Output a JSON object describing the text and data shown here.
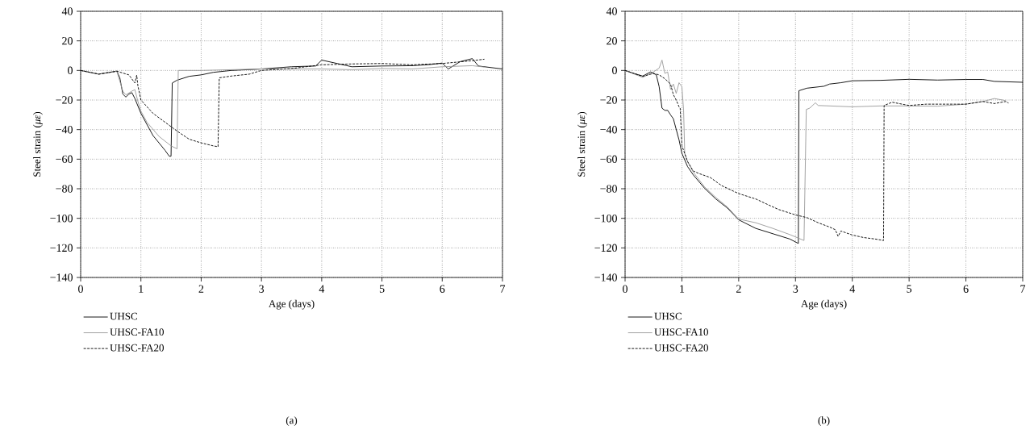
{
  "chart_data": [
    {
      "type": "line",
      "xlabel": "Age (days)",
      "ylabel": "Steel strain (*με*)",
      "xlim": [
        0,
        7
      ],
      "ylim": [
        -140,
        40
      ],
      "xticks": [
        0,
        1,
        2,
        3,
        4,
        5,
        6,
        7
      ],
      "yticks": [
        {
          "value": -140,
          "label": "−140"
        },
        {
          "value": -120,
          "label": "−120"
        },
        {
          "value": -100,
          "label": "−100"
        },
        {
          "value": -80,
          "label": "−80"
        },
        {
          "value": -60,
          "label": "−60"
        },
        {
          "value": -40,
          "label": "−40"
        },
        {
          "value": -20,
          "label": "−20"
        },
        0,
        20,
        40
      ],
      "grid": true,
      "legend": "bottom",
      "marker": "none",
      "annotations": [
        "(a)"
      ],
      "series": [
        {
          "name": "UHSC",
          "color": "#000000",
          "line_style": "solid",
          "x": [
            0,
            0.3,
            0.6,
            0.65,
            0.7,
            0.75,
            0.8,
            0.85,
            0.9,
            1.0,
            1.2,
            1.4,
            1.47,
            1.5,
            1.52,
            1.6,
            1.8,
            2.0,
            2.2,
            2.5,
            3.0,
            3.5,
            3.9,
            4.0,
            4.5,
            5.0,
            5.5,
            5.8,
            6.0,
            6.1,
            6.3,
            6.5,
            6.6,
            7.0
          ],
          "values": [
            0,
            -2.5,
            -0.5,
            -5,
            -16,
            -18,
            -16,
            -15,
            -19,
            -29,
            -44,
            -54,
            -58,
            -58,
            -8.5,
            -6.6,
            -4,
            -3,
            -1.3,
            0,
            1,
            2.5,
            3,
            7,
            2.5,
            3,
            3.2,
            4,
            5,
            1,
            6,
            8,
            3,
            1
          ]
        },
        {
          "name": "UHSC-FA10",
          "color": "#999999",
          "line_style": "solid",
          "x": [
            0,
            0.3,
            0.6,
            0.7,
            0.75,
            0.85,
            0.9,
            0.95,
            1.0,
            1.1,
            1.3,
            1.5,
            1.6,
            1.62,
            2.0,
            3.0,
            3.5,
            4.0,
            4.5,
            5.0,
            5.5,
            6.0,
            6.5,
            6.7
          ],
          "values": [
            0,
            -2.5,
            -0.5,
            -14,
            -16.5,
            -14,
            -13,
            -21,
            -27.5,
            -35,
            -44.6,
            -51,
            -53,
            0,
            0,
            1,
            1,
            1,
            0.5,
            1.3,
            1,
            2.5,
            3.2,
            2.3
          ]
        },
        {
          "name": "UHSC-FA20",
          "color": "#000000",
          "line_style": "dashed",
          "x": [
            0,
            0.3,
            0.6,
            0.8,
            0.9,
            0.93,
            0.95,
            1.0,
            1.2,
            1.4,
            1.6,
            1.8,
            2.0,
            2.2,
            2.28,
            2.3,
            2.5,
            2.8,
            3.0,
            3.5,
            4.0,
            4.5,
            5.0,
            5.5,
            6.0,
            6.5,
            6.7
          ],
          "values": [
            0,
            -2.5,
            -0.5,
            -3,
            -8.5,
            -3.2,
            -10.4,
            -20,
            -29,
            -35,
            -41,
            -46.5,
            -49,
            -51,
            -51.6,
            -5,
            -3.8,
            -2.5,
            0,
            1.3,
            3.8,
            4.4,
            4.7,
            3.8,
            4.7,
            6.6,
            7.6
          ]
        }
      ]
    },
    {
      "type": "line",
      "xlabel": "Age (days)",
      "ylabel": "Steel strain (*με*)",
      "xlim": [
        0,
        7
      ],
      "ylim": [
        -140,
        40
      ],
      "xticks": [
        0,
        1,
        2,
        3,
        4,
        5,
        6,
        7
      ],
      "yticks": [
        {
          "value": -140,
          "label": "−140"
        },
        {
          "value": -120,
          "label": "−120"
        },
        {
          "value": -100,
          "label": "−100"
        },
        {
          "value": -80,
          "label": "−80"
        },
        {
          "value": -60,
          "label": "−60"
        },
        {
          "value": -40,
          "label": "−40"
        },
        {
          "value": -20,
          "label": "−20"
        },
        0,
        20,
        40
      ],
      "grid": true,
      "legend": "bottom",
      "marker": "none",
      "annotations": [
        "(b)"
      ],
      "series": [
        {
          "name": "UHSC",
          "color": "#000000",
          "line_style": "solid",
          "x": [
            0,
            0.15,
            0.31,
            0.45,
            0.55,
            0.6,
            0.65,
            0.7,
            0.75,
            0.8,
            0.85,
            0.95,
            1.0,
            1.1,
            1.2,
            1.4,
            1.6,
            1.8,
            2.0,
            2.3,
            2.6,
            2.9,
            3.05,
            3.06,
            3.2,
            3.5,
            3.6,
            3.8,
            4.0,
            4.5,
            5.0,
            5.5,
            6.0,
            6.3,
            6.5,
            7.0
          ],
          "values": [
            0,
            -2,
            -3.8,
            -1,
            -3,
            -11,
            -25.5,
            -27,
            -27,
            -30,
            -32.7,
            -47,
            -56,
            -65,
            -70.6,
            -79.7,
            -87,
            -93,
            -101,
            -106.8,
            -110.4,
            -114,
            -117,
            -13.7,
            -12,
            -10.7,
            -9.2,
            -8.3,
            -7,
            -6.7,
            -6,
            -6.5,
            -6.1,
            -6.1,
            -7.4,
            -8
          ]
        },
        {
          "name": "UHSC-FA10",
          "color": "#999999",
          "line_style": "solid",
          "x": [
            0,
            0.31,
            0.5,
            0.6,
            0.65,
            0.7,
            0.75,
            0.8,
            0.85,
            0.9,
            0.95,
            1.0,
            1.03,
            1.05,
            1.1,
            1.2,
            1.4,
            1.6,
            1.8,
            2.0,
            2.3,
            2.6,
            2.9,
            3.15,
            3.19,
            3.25,
            3.35,
            3.4,
            3.6,
            4.0,
            4.5,
            5.0,
            5.5,
            6.0,
            6.3,
            6.5,
            6.7
          ],
          "values": [
            0,
            -4.7,
            -1,
            1.6,
            7,
            -2,
            -1,
            -12.8,
            -9.2,
            -15.5,
            -8.3,
            -11,
            -27,
            -56,
            -61.6,
            -68.8,
            -78.8,
            -86,
            -92.3,
            -100.5,
            -103,
            -106.8,
            -111,
            -115,
            -26.4,
            -25.5,
            -21.9,
            -23.7,
            -24,
            -24.6,
            -24,
            -24,
            -24.2,
            -22.8,
            -21,
            -19,
            -20.4
          ]
        },
        {
          "name": "UHSC-FA20",
          "color": "#000000",
          "line_style": "dashed",
          "x": [
            0,
            0.31,
            0.5,
            0.6,
            0.7,
            0.8,
            0.85,
            0.9,
            0.95,
            0.97,
            1.0,
            1.1,
            1.2,
            1.3,
            1.5,
            1.7,
            2.0,
            2.3,
            2.5,
            2.7,
            3.0,
            3.2,
            3.4,
            3.6,
            3.7,
            3.75,
            3.8,
            4.0,
            4.2,
            4.4,
            4.55,
            4.56,
            4.7,
            5.0,
            5.3,
            5.6,
            6.0,
            6.3,
            6.5,
            6.7,
            6.75
          ],
          "values": [
            0,
            -4,
            -2,
            -3,
            -5.6,
            -9.2,
            -16.4,
            -20,
            -24.6,
            -25.5,
            -50.8,
            -61.6,
            -68,
            -69.7,
            -72.4,
            -77.9,
            -83.3,
            -86.9,
            -90.5,
            -94,
            -97.7,
            -99.5,
            -103,
            -105.9,
            -107.7,
            -112.2,
            -108.6,
            -111.3,
            -113,
            -114,
            -115,
            -23.7,
            -21.5,
            -23.7,
            -22.8,
            -22.8,
            -22.8,
            -21,
            -22.4,
            -21,
            -22
          ]
        }
      ]
    }
  ]
}
